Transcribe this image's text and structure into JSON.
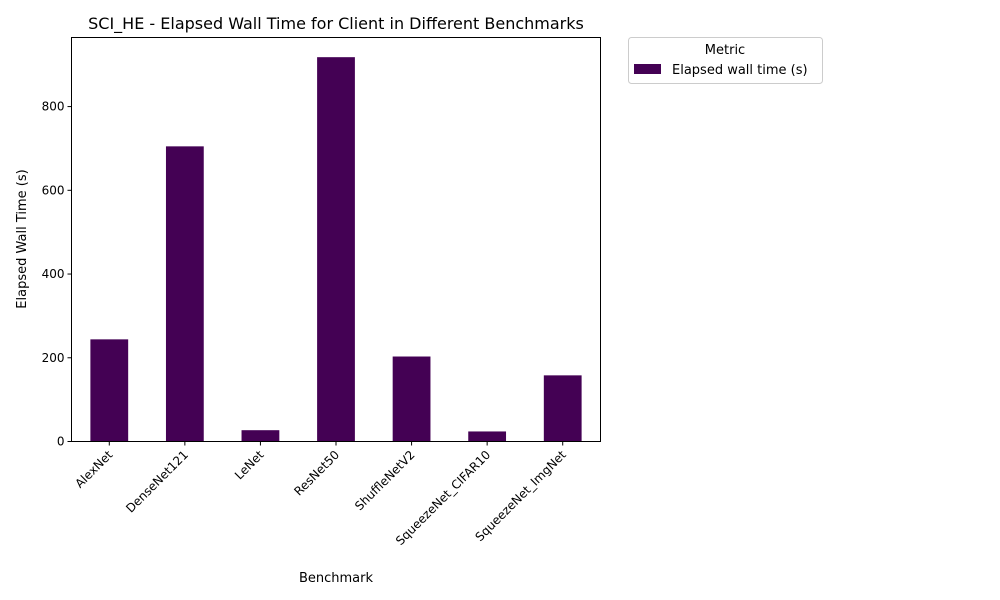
{
  "chart_data": {
    "type": "bar",
    "title": "SCI_HE - Elapsed Wall Time for Client in Different Benchmarks",
    "xlabel": "Benchmark",
    "ylabel": "Elapsed Wall Time (s)",
    "categories": [
      "AlexNet",
      "DenseNet121",
      "LeNet",
      "ResNet50",
      "ShuffleNetV2",
      "SqueezeNet_CIFAR10",
      "SqueezeNet_ImgNet"
    ],
    "series": [
      {
        "name": "Elapsed wall time (s)",
        "values": [
          244,
          705,
          27,
          918,
          203,
          24,
          158
        ],
        "color": "#440154"
      }
    ],
    "ylim": [
      0,
      965
    ],
    "yticks": [
      0,
      200,
      400,
      600,
      800
    ],
    "grid": false,
    "legend": {
      "title": "Metric",
      "placement": "outside upper right"
    }
  }
}
